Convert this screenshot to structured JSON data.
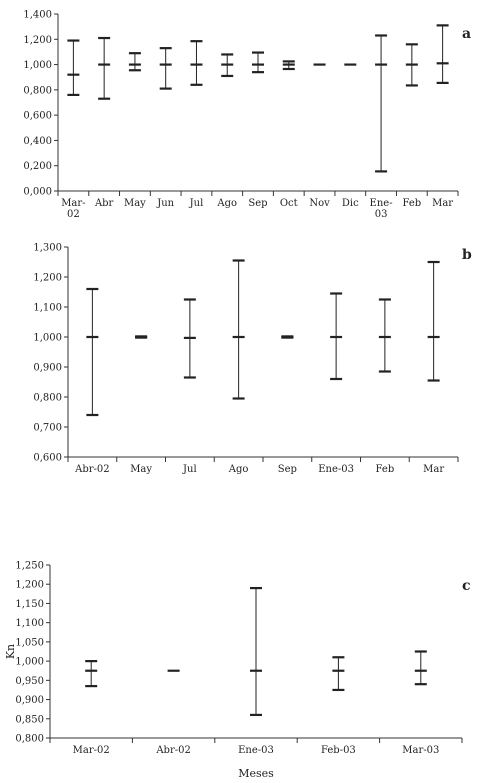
{
  "chart_data": [
    {
      "type": "error-bar",
      "panel_label": "a",
      "categories": [
        "Mar-\n02",
        "Abr",
        "May",
        "Jun",
        "Jul",
        "Ago",
        "Sep",
        "Oct",
        "Nov",
        "Dic",
        "Ene-\n03",
        "Feb",
        "Mar"
      ],
      "mean": [
        0.92,
        1.0,
        1.0,
        1.0,
        1.0,
        1.0,
        1.0,
        1.0,
        1.0,
        1.0,
        1.0,
        1.0,
        1.01
      ],
      "low": [
        0.76,
        0.73,
        0.955,
        0.81,
        0.84,
        0.91,
        0.94,
        0.965,
        1.0,
        1.0,
        0.155,
        0.835,
        0.855
      ],
      "high": [
        1.19,
        1.21,
        1.09,
        1.13,
        1.185,
        1.08,
        1.095,
        1.025,
        1.0,
        1.0,
        1.23,
        1.16,
        1.31
      ],
      "ylim": [
        0,
        1.4
      ],
      "yticks": [
        "0,000",
        "0,200",
        "0,400",
        "0,600",
        "0,800",
        "1,000",
        "1,200",
        "1,400"
      ],
      "xlabel": "",
      "ylabel": ""
    },
    {
      "type": "error-bar",
      "panel_label": "b",
      "categories": [
        "Abr-02",
        "May",
        "Jul",
        "Ago",
        "Sep",
        "Ene-03",
        "Feb",
        "Mar"
      ],
      "mean": [
        1.0,
        1.0,
        0.997,
        1.0,
        1.0,
        1.0,
        1.0,
        1.0
      ],
      "low": [
        0.74,
        0.998,
        0.865,
        0.795,
        0.998,
        0.86,
        0.885,
        0.855
      ],
      "high": [
        1.16,
        1.002,
        1.125,
        1.255,
        1.002,
        1.145,
        1.125,
        1.25
      ],
      "ylim": [
        0.6,
        1.3
      ],
      "yticks": [
        "0,600",
        "0,700",
        "0,800",
        "0,900",
        "1,000",
        "1,100",
        "1,200",
        "1,300"
      ],
      "xlabel": "",
      "ylabel": ""
    },
    {
      "type": "error-bar",
      "panel_label": "c",
      "categories": [
        "Mar-02",
        "Abr-02",
        "Ene-03",
        "Feb-03",
        "Mar-03"
      ],
      "mean": [
        0.975,
        0.975,
        0.975,
        0.975,
        0.975
      ],
      "low": [
        0.935,
        0.975,
        0.86,
        0.925,
        0.94
      ],
      "high": [
        1.0,
        0.975,
        1.19,
        1.01,
        1.025
      ],
      "ylim": [
        0.8,
        1.25
      ],
      "yticks": [
        "0,800",
        "0,850",
        "0,900",
        "0,950",
        "1,000",
        "1,050",
        "1,100",
        "1,150",
        "1,200",
        "1,250"
      ],
      "xlabel": "Meses",
      "ylabel": "Kn"
    }
  ]
}
